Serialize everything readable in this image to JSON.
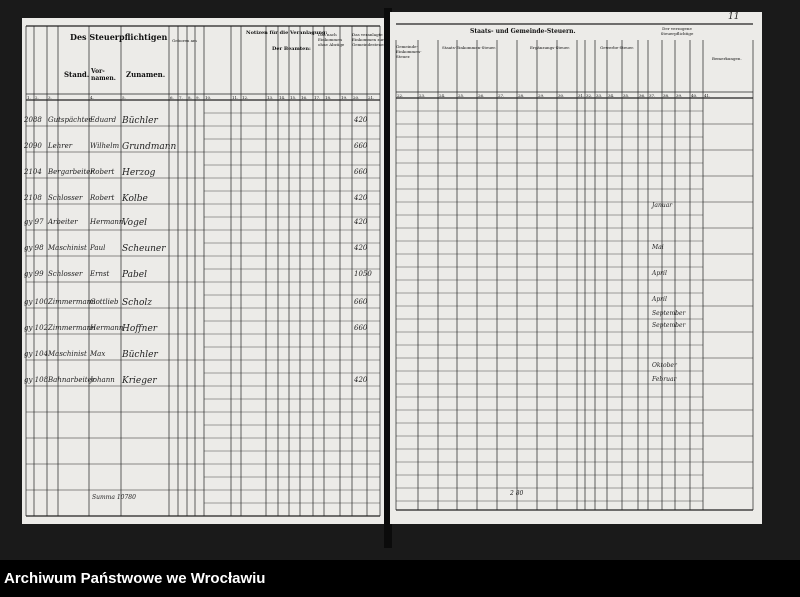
{
  "left_page": {
    "title": "Des Steuerpflichtigen",
    "headers": {
      "stand": "Stand.",
      "vornamen": "Vor-namen.",
      "zunamen": "Zunamen.",
      "geboren": "Geboren am",
      "notizen": "Notizen für die Veranlagung:",
      "beamten": "Der Beamten:",
      "einkommen_abzug": "Das nach Einkommen ohne Abzüge",
      "einkommen_gemeinde": "Das veranlagte Einkommen zur Gemeindesteuer"
    },
    "column_numbers": [
      "1.",
      "2.",
      "3.",
      "4.",
      "5.",
      "6.",
      "7.",
      "8.",
      "9.",
      "10.",
      "11.",
      "12.",
      "13.",
      "14.",
      "15.",
      "16.",
      "17.",
      "18.",
      "19.",
      "20.",
      "21."
    ],
    "entries": [
      {
        "nr": "2088",
        "stand": "Gutspächter",
        "vorname": "Eduard",
        "zuname": "Büchler",
        "sum": "420"
      },
      {
        "nr": "2090",
        "stand": "Lehrer",
        "vorname": "Wilhelm",
        "zuname": "Grundmann",
        "sum": "660"
      },
      {
        "nr": "2104",
        "stand": "Bergarbeiter",
        "vorname": "Robert",
        "zuname": "Herzog",
        "sum": "660"
      },
      {
        "nr": "2108",
        "stand": "Schlosser",
        "vorname": "Robert",
        "zuname": "Kolbe",
        "sum": "420"
      },
      {
        "nr": "gy 97",
        "stand": "Arbeiter",
        "vorname": "Hermann",
        "zuname": "Vogel",
        "sum": "420"
      },
      {
        "nr": "gy 98",
        "stand": "Maschinist",
        "vorname": "Paul",
        "zuname": "Scheuner",
        "sum": "420"
      },
      {
        "nr": "gy 99",
        "stand": "Schlosser",
        "vorname": "Ernst",
        "zuname": "Pabel",
        "sum": "1050"
      },
      {
        "nr": "gy 100",
        "stand": "Zimmermann",
        "vorname": "Gottlieb",
        "zuname": "Scholz",
        "sum": "660"
      },
      {
        "nr": "gy 102",
        "stand": "Zimmermann",
        "vorname": "Hermann",
        "zuname": "Hoffner",
        "sum": "660"
      },
      {
        "nr": "gy 104",
        "stand": "Maschinist",
        "vorname": "Max",
        "zuname": "Büchler",
        "sum": ""
      },
      {
        "nr": "gy 108",
        "stand": "Bahnarbeiter",
        "vorname": "Johann",
        "zuname": "Krieger",
        "sum": "420"
      }
    ],
    "footer_note": "Summa 10780"
  },
  "right_page": {
    "page_number": "11",
    "title": "Staats- und Gemeinde-Steuern.",
    "headers": {
      "gemeinde": "Gemeinde-Einkommen-Steuer.",
      "staats": "Staats-Einkommen-Steuer.",
      "erganzung": "Ergänzungs-Steuer.",
      "gewerbe": "Gewerbe-Steuer.",
      "verzogen": "Der verzogene Steuerpflichtige",
      "bemerkungen": "Bemerkungen."
    },
    "column_numbers": [
      "22.",
      "23.",
      "24.",
      "25.",
      "26.",
      "27.",
      "28.",
      "29.",
      "30.",
      "31.",
      "32.",
      "33.",
      "34.",
      "35.",
      "36.",
      "37.",
      "38.",
      "39.",
      "40.",
      "41."
    ],
    "remarks": [
      "Januar",
      "Mai",
      "April",
      "April",
      "September",
      "September",
      "Oktober",
      "Februar"
    ],
    "footer_sum": "2 80"
  },
  "footer": {
    "archive": "Archiwum Państwowe we Wrocławiu"
  },
  "colors": {
    "paper": "#ecebe8",
    "background": "#1a1a1a",
    "ink": "#111111"
  }
}
